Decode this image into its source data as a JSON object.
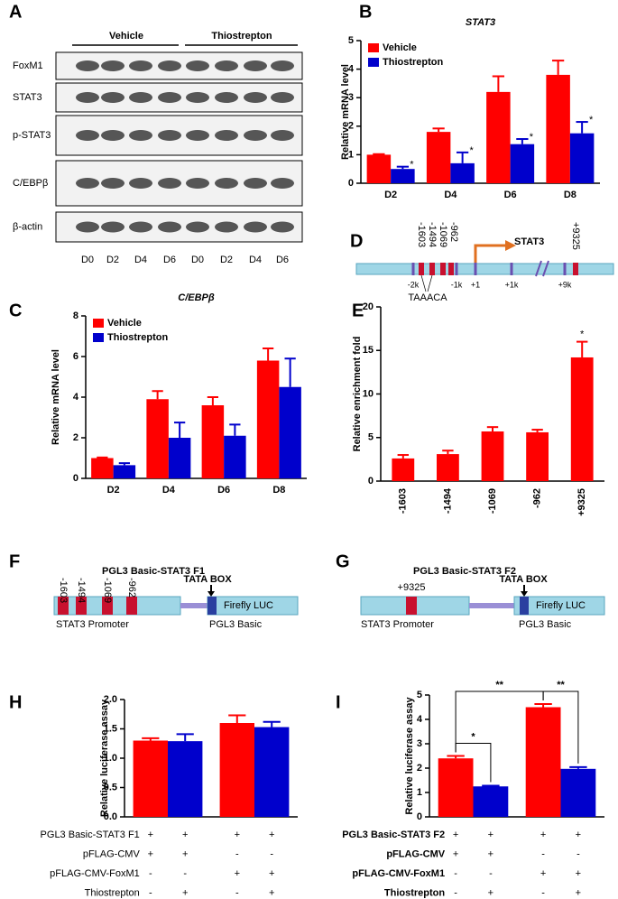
{
  "blot": {
    "panel": "A",
    "groups": [
      "Vehicle",
      "Thiostrepton"
    ],
    "proteins": [
      "FoxM1",
      "STAT3",
      "p-STAT3",
      "C/EBPβ",
      "β-actin"
    ],
    "lanes": [
      "D0",
      "D2",
      "D4",
      "D6",
      "D0",
      "D2",
      "D4",
      "D6"
    ]
  },
  "promoter_map": {
    "panel": "D",
    "sites": [
      "-1603",
      "-1494",
      "-1069",
      "-962"
    ],
    "distal_site": "+9325",
    "gene": "STAT3",
    "positions": [
      "-2k",
      "-1k",
      "+1",
      "+1k",
      "+9k"
    ],
    "motif": "TAAACA"
  },
  "constructs": [
    {
      "panel": "F",
      "title": "PGL3 Basic-STAT3 F1",
      "sites": [
        "-1603",
        "-1494",
        "-1069",
        "-962"
      ],
      "tata": "TATA BOX",
      "reporter": "Firefly LUC",
      "promoter": "STAT3  Promoter",
      "vector": "PGL3 Basic"
    },
    {
      "panel": "G",
      "title": "PGL3 Basic-STAT3 F2",
      "sites": [
        "+9325"
      ],
      "tata": "TATA BOX",
      "reporter": "Firefly LUC",
      "promoter": "STAT3  Promoter",
      "vector": "PGL3 Basic"
    }
  ],
  "chart_data": [
    {
      "type": "bar",
      "panel": "B",
      "title": "STAT3",
      "y_label": "Relative mRNA level",
      "categories": [
        "D2",
        "D4",
        "D6",
        "D8"
      ],
      "series": [
        {
          "name": "Vehicle",
          "color": "#ff0000",
          "values": [
            1,
            1.8,
            3.2,
            3.8
          ],
          "errors": [
            0.02,
            0.12,
            0.55,
            0.5
          ]
        },
        {
          "name": "Thiostrepton",
          "color": "#0000cc",
          "values": [
            0.5,
            0.7,
            1.37,
            1.75
          ],
          "errors": [
            0.08,
            0.38,
            0.18,
            0.4
          ],
          "significance": [
            "*",
            "*",
            "*",
            "*"
          ]
        }
      ],
      "ylim": [
        0,
        5
      ],
      "yticks": [
        0,
        1,
        2,
        3,
        4,
        5
      ],
      "legend": "upper left"
    },
    {
      "type": "bar",
      "panel": "C",
      "title": "C/EBPβ",
      "y_label": "Relative mRNA level",
      "categories": [
        "D2",
        "D4",
        "D6",
        "D8"
      ],
      "series": [
        {
          "name": "Vehicle",
          "color": "#ff0000",
          "values": [
            1,
            3.9,
            3.6,
            5.8
          ],
          "errors": [
            0.03,
            0.4,
            0.4,
            0.6
          ]
        },
        {
          "name": "Thiostrepton",
          "color": "#0000cc",
          "values": [
            0.65,
            2,
            2.1,
            4.5
          ],
          "errors": [
            0.1,
            0.75,
            0.55,
            1.4
          ]
        }
      ],
      "ylim": [
        0,
        8
      ],
      "yticks": [
        0,
        2,
        4,
        6,
        8
      ],
      "legend": "upper left"
    },
    {
      "type": "bar",
      "panel": "E",
      "y_label": "Relative enrichment fold",
      "categories": [
        "-1603",
        "-1494",
        "-1069",
        "-962",
        "+9325"
      ],
      "values": [
        2.6,
        3.1,
        5.7,
        5.6,
        14.2
      ],
      "errors": [
        0.4,
        0.4,
        0.5,
        0.3,
        1.8
      ],
      "significance": [
        null,
        null,
        null,
        null,
        "*"
      ],
      "color": "#ff0000",
      "ylim": [
        0,
        20
      ],
      "yticks": [
        0,
        5,
        10,
        15,
        20
      ],
      "rotated_xticks": true
    },
    {
      "type": "bar",
      "panel": "H",
      "y_label": "Relative luciferase assay",
      "categories": [
        null,
        null
      ],
      "series": [
        {
          "color": "#ff0000",
          "values": [
            1.3,
            1.6
          ],
          "errors": [
            0.04,
            0.13
          ]
        },
        {
          "color": "#0000cc",
          "values": [
            1.29,
            1.53
          ],
          "errors": [
            0.12,
            0.09
          ]
        }
      ],
      "ylim": [
        0,
        2
      ],
      "yticks": [
        {
          "value": 0,
          "label": "0.0"
        },
        {
          "value": 0.5,
          "label": "0.5"
        },
        {
          "value": 1,
          "label": "1.0"
        },
        {
          "value": 1.5,
          "label": "1.5"
        },
        {
          "value": 2,
          "label": "2.0"
        }
      ],
      "conditions": [
        {
          "name": "PGL3 Basic-STAT3 F1",
          "marks": [
            "+",
            "+",
            "+",
            "+"
          ]
        },
        {
          "name": "pFLAG-CMV",
          "marks": [
            "+",
            "+",
            "-",
            "-"
          ]
        },
        {
          "name": "pFLAG-CMV-FoxM1",
          "marks": [
            "-",
            "-",
            "+",
            "+"
          ]
        },
        {
          "name": "Thiostrepton",
          "marks": [
            "-",
            "+",
            "-",
            "+"
          ]
        }
      ]
    },
    {
      "type": "bar",
      "panel": "I",
      "y_label": "Relative luciferase assay",
      "categories": [
        null,
        null
      ],
      "series": [
        {
          "color": "#ff0000",
          "values": [
            2.4,
            4.5
          ],
          "errors": [
            0.1,
            0.13
          ]
        },
        {
          "color": "#0000cc",
          "values": [
            1.25,
            1.97
          ],
          "errors": [
            0.03,
            0.07
          ]
        }
      ],
      "ylim": [
        0,
        5
      ],
      "yticks": [
        0,
        1,
        2,
        3,
        4,
        5
      ],
      "brackets": [
        {
          "from": 0,
          "to": 2,
          "label": "**"
        },
        {
          "from": 0,
          "to": 1,
          "label": "*"
        },
        {
          "from": 2,
          "to": 3,
          "label": "**"
        }
      ],
      "conditions": [
        {
          "name": "PGL3 Basic-STAT3 F2",
          "marks": [
            "+",
            "+",
            "+",
            "+"
          ]
        },
        {
          "name": "pFLAG-CMV",
          "marks": [
            "+",
            "+",
            "-",
            "-"
          ]
        },
        {
          "name": "pFLAG-CMV-FoxM1",
          "marks": [
            "-",
            "-",
            "+",
            "+"
          ]
        },
        {
          "name": "Thiostrepton",
          "marks": [
            "-",
            "+",
            "-",
            "+"
          ]
        }
      ]
    }
  ]
}
